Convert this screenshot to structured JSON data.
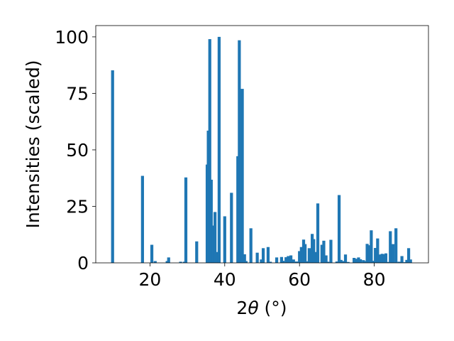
{
  "chart_data": {
    "type": "bar",
    "title": "",
    "xlabel_prefix": "2",
    "xlabel_symbol": "θ",
    "xlabel_suffix": " (°)",
    "ylabel": "Intensities (scaled)",
    "xlim": [
      5.5,
      94.5
    ],
    "ylim": [
      0,
      105
    ],
    "xticks": [
      20,
      40,
      60,
      80
    ],
    "yticks": [
      0,
      25,
      50,
      75,
      100
    ],
    "grid": false,
    "bar_color": "#1f77b4",
    "x": [
      10.0,
      18.0,
      20.5,
      21.4,
      24.6,
      25.0,
      28.2,
      29.2,
      29.6,
      32.5,
      35.3,
      35.6,
      36.0,
      36.4,
      37.0,
      37.4,
      38.0,
      38.5,
      40.0,
      41.8,
      43.5,
      43.9,
      44.2,
      44.7,
      45.3,
      45.7,
      47.0,
      48.7,
      49.8,
      50.3,
      51.6,
      52.2,
      53.9,
      55.2,
      55.6,
      56.4,
      57.0,
      57.7,
      58.4,
      59.2,
      60.0,
      60.5,
      61.1,
      61.5,
      62.1,
      62.6,
      63.4,
      63.8,
      64.3,
      64.9,
      66.0,
      66.5,
      67.1,
      67.6,
      68.4,
      70.0,
      70.6,
      71.1,
      71.7,
      72.3,
      73.0,
      74.6,
      75.2,
      75.8,
      76.3,
      77.1,
      77.6,
      78.1,
      78.6,
      79.2,
      79.7,
      80.3,
      80.9,
      81.6,
      82.1,
      82.6,
      83.1,
      83.6,
      84.3,
      85.0,
      85.8,
      86.6,
      87.4,
      88.2,
      88.7,
      89.2,
      89.7
    ],
    "values": [
      85.2,
      38.5,
      8.0,
      0.8,
      0.8,
      2.4,
      0.5,
      0.5,
      37.8,
      9.5,
      43.5,
      58.5,
      99.0,
      36.8,
      16.5,
      22.5,
      4.8,
      100.0,
      20.6,
      31.0,
      47.2,
      98.5,
      4.8,
      77.0,
      3.8,
      0.8,
      15.3,
      4.5,
      1.5,
      6.5,
      7.0,
      0.5,
      2.4,
      2.6,
      0.9,
      2.5,
      3.0,
      3.3,
      1.5,
      0.6,
      5.2,
      7.0,
      10.3,
      8.3,
      0.7,
      6.5,
      12.8,
      10.5,
      4.8,
      26.3,
      8.0,
      9.8,
      3.3,
      0.5,
      10.2,
      0.6,
      30.0,
      1.3,
      0.8,
      3.7,
      0.4,
      2.2,
      1.8,
      2.4,
      1.6,
      1.2,
      0.8,
      8.4,
      7.8,
      14.4,
      0.9,
      6.6,
      10.8,
      3.7,
      4.0,
      3.8,
      4.2,
      0.4,
      14.0,
      8.3,
      15.3,
      0.5,
      3.0,
      0.3,
      1.3,
      6.5,
      1.5
    ]
  }
}
